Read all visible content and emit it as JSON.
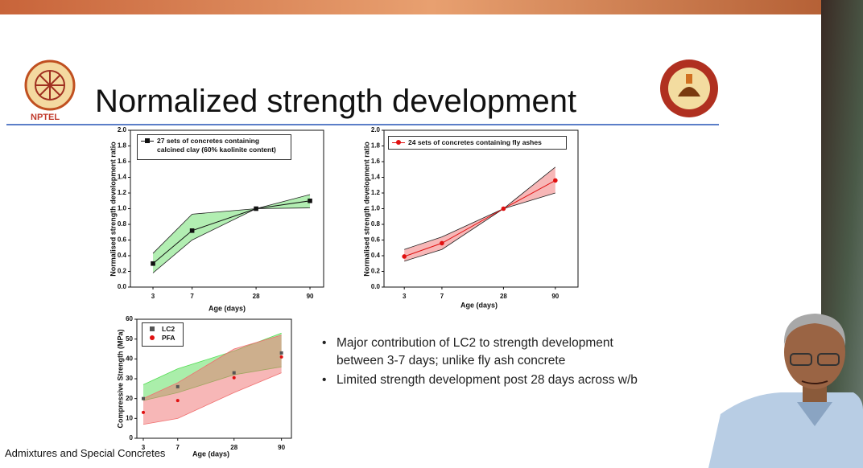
{
  "slide": {
    "title": "Normalized strength development",
    "logo_text": "NPTEL",
    "bullets": [
      "Major contribution of LC2 to strength development between 3-7 days; unlike fly ash concrete",
      "Limited strength development post 28 days across w/b"
    ],
    "footer": "Admixtures and Special Concretes"
  },
  "chart_data": [
    {
      "type": "line",
      "xlabel": "Age (days)",
      "ylabel": "Normalised strength development ratio",
      "x": [
        3,
        7,
        28,
        90
      ],
      "xscale": "log",
      "xlim": [
        1.84,
        121
      ],
      "xticks": [
        3,
        7,
        28,
        90
      ],
      "ylim": [
        0,
        2
      ],
      "yticks": [
        {
          "value": 0,
          "label": "0.0"
        },
        0.2,
        0.4,
        0.6,
        0.8,
        {
          "value": 1,
          "label": "1.0"
        },
        1.2,
        1.4,
        1.6,
        1.8,
        {
          "value": 2,
          "label": "2.0"
        }
      ],
      "series": [
        {
          "name": "27 sets of concretes containing calcined clay (60% kaolinite content)",
          "color": "#111111",
          "marker": "square",
          "band_color": "#66dd66",
          "values": [
            0.3,
            0.72,
            1.0,
            1.1
          ],
          "upper": [
            0.43,
            0.93,
            1.0,
            1.18
          ],
          "lower": [
            0.18,
            0.6,
            1.0,
            1.01
          ]
        }
      ]
    },
    {
      "type": "line",
      "xlabel": "Age (days)",
      "ylabel": "Normalised strength development ratio",
      "x": [
        3,
        7,
        28,
        90
      ],
      "xscale": "log",
      "xlim": [
        1.9,
        150
      ],
      "xticks": [
        3,
        7,
        28,
        90
      ],
      "ylim": [
        0,
        2
      ],
      "yticks": [
        {
          "value": 0,
          "label": "0.0"
        },
        0.2,
        0.4,
        0.6,
        0.8,
        {
          "value": 1,
          "label": "1.0"
        },
        1.2,
        1.4,
        1.6,
        1.8,
        {
          "value": 2,
          "label": "2.0"
        }
      ],
      "series": [
        {
          "name": "24 sets of concretes containing fly ashes",
          "color": "#e01010",
          "marker": "circle",
          "band_color": "#f07070",
          "values": [
            0.39,
            0.56,
            1.0,
            1.36
          ],
          "upper": [
            0.48,
            0.64,
            1.0,
            1.53
          ],
          "lower": [
            0.33,
            0.48,
            1.0,
            1.2
          ]
        }
      ]
    },
    {
      "type": "scatter",
      "xlabel": "Age (days)",
      "ylabel": "Compressive Strength (MPa)",
      "x": [
        3,
        7,
        28,
        90
      ],
      "xscale": "log",
      "xlim": [
        2.56,
        115
      ],
      "xticks": [
        3,
        7,
        28,
        90
      ],
      "ylim": [
        0,
        60
      ],
      "yticks": [
        0,
        10,
        20,
        30,
        40,
        50,
        60
      ],
      "series": [
        {
          "name": "LC2",
          "color": "#555555",
          "marker": "square",
          "band_color": "#55dd55",
          "values": [
            20,
            26,
            33,
            43
          ],
          "upper": [
            27,
            35,
            44,
            53
          ],
          "lower": [
            19,
            23,
            32,
            36
          ]
        },
        {
          "name": "PFA",
          "color": "#e01010",
          "marker": "circle",
          "band_color": "#f07070",
          "values": [
            13,
            19,
            30.5,
            41
          ],
          "upper": [
            20,
            28,
            45,
            52
          ],
          "lower": [
            7,
            10,
            23,
            33
          ]
        }
      ]
    }
  ]
}
